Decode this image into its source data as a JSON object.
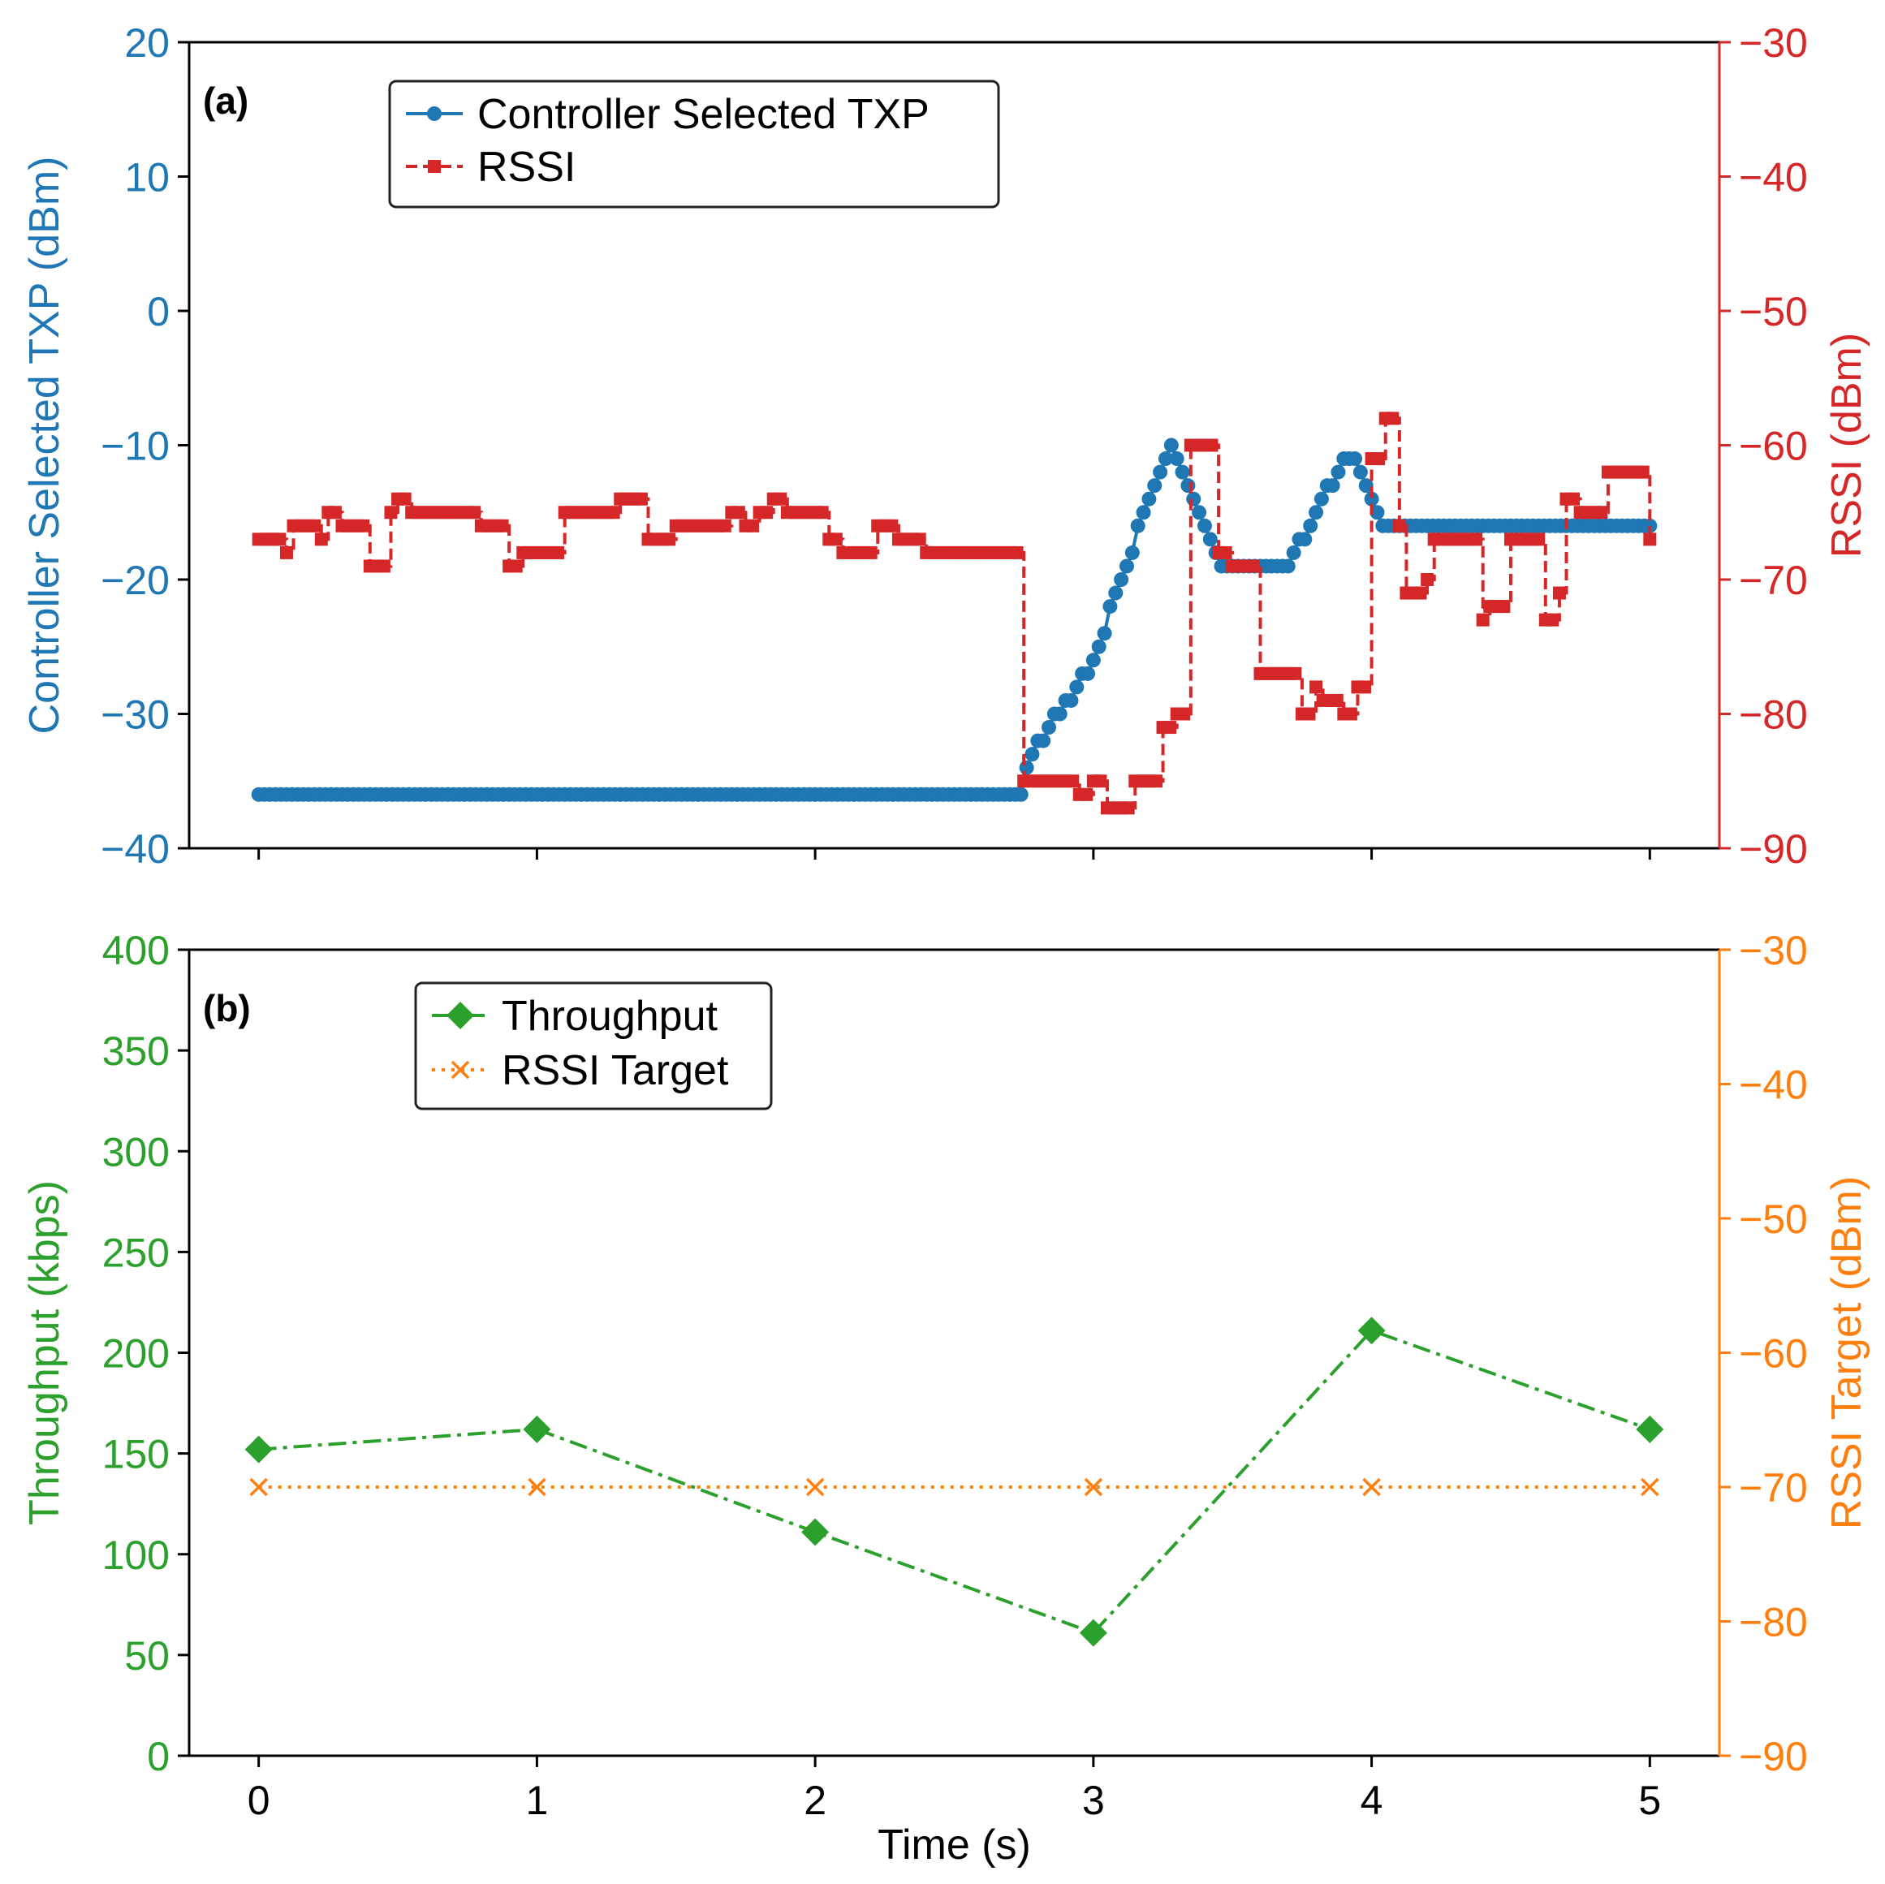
{
  "colors": {
    "txp": "#1f77b4",
    "rssi": "#d62728",
    "throughput": "#2ca02c",
    "rssi_target": "#ff7f0e",
    "axis": "#000000"
  },
  "chart_data": [
    {
      "id": "a",
      "type": "line",
      "panel_label": "(a)",
      "xlim": [
        -0.25,
        5.25
      ],
      "x_ticks": [
        0,
        1,
        2,
        3,
        4,
        5
      ],
      "left_axis": {
        "label": "Controller Selected TXP (dBm)",
        "ylim": [
          -40,
          20
        ],
        "ticks": [
          -40,
          -30,
          -20,
          -10,
          0,
          10,
          20
        ],
        "tick_labels": [
          "−40",
          "−30",
          "−20",
          "−10",
          "0",
          "10",
          "20"
        ]
      },
      "right_axis": {
        "label": "RSSI (dBm)",
        "ylim": [
          -90,
          -30
        ],
        "ticks": [
          -90,
          -80,
          -70,
          -60,
          -50,
          -40,
          -30
        ],
        "tick_labels": [
          "−90",
          "−80",
          "−70",
          "−60",
          "−50",
          "−40",
          "−30"
        ]
      },
      "legend": {
        "position": "top-left",
        "entries": [
          "Controller Selected TXP",
          "RSSI"
        ]
      },
      "series": [
        {
          "name": "Controller Selected TXP",
          "axis": "left",
          "style": "solid line, circle markers",
          "x": [
            0,
            2.74,
            2.78,
            3.0,
            3.1,
            3.2,
            3.28,
            3.38,
            3.45,
            3.7,
            3.8,
            3.9,
            3.95,
            4.05,
            5.0
          ],
          "y": [
            -36,
            -36,
            -33,
            -26,
            -20,
            -14,
            -10,
            -15,
            -19,
            -19,
            -15,
            -11,
            -11,
            -16,
            -16
          ]
        },
        {
          "name": "RSSI",
          "axis": "right",
          "style": "dashed line, square markers",
          "steps": [
            [
              0.0,
              -67
            ],
            [
              0.1,
              -68
            ],
            [
              0.12,
              -66
            ],
            [
              0.22,
              -67
            ],
            [
              0.25,
              -65
            ],
            [
              0.3,
              -66
            ],
            [
              0.38,
              -69
            ],
            [
              0.46,
              -65
            ],
            [
              0.5,
              -64
            ],
            [
              0.55,
              -65
            ],
            [
              0.8,
              -66
            ],
            [
              0.78,
              -69
            ],
            [
              0.85,
              -66
            ],
            [
              0.9,
              -69
            ],
            [
              0.95,
              -68
            ],
            [
              1.1,
              -65
            ],
            [
              1.3,
              -64
            ],
            [
              1.4,
              -67
            ],
            [
              1.5,
              -66
            ],
            [
              1.7,
              -65
            ],
            [
              1.75,
              -66
            ],
            [
              1.8,
              -65
            ],
            [
              1.85,
              -64
            ],
            [
              1.9,
              -65
            ],
            [
              2.05,
              -67
            ],
            [
              2.1,
              -68
            ],
            [
              2.22,
              -66
            ],
            [
              2.28,
              -65
            ],
            [
              2.3,
              -67
            ],
            [
              2.4,
              -68
            ],
            [
              2.73,
              -68
            ],
            [
              2.75,
              -85
            ],
            [
              2.9,
              -85
            ],
            [
              2.95,
              -86
            ],
            [
              3.0,
              -85
            ],
            [
              3.05,
              -87
            ],
            [
              3.15,
              -85
            ],
            [
              3.25,
              -81
            ],
            [
              3.28,
              -80
            ],
            [
              3.3,
              -80
            ],
            [
              3.33,
              -60
            ],
            [
              3.38,
              -59
            ],
            [
              3.4,
              -60
            ],
            [
              3.45,
              -68
            ],
            [
              3.5,
              -69
            ],
            [
              3.55,
              -69
            ],
            [
              3.6,
              -77
            ],
            [
              3.75,
              -80
            ],
            [
              3.78,
              -78
            ],
            [
              3.82,
              -79
            ],
            [
              3.9,
              -80
            ],
            [
              3.95,
              -78
            ],
            [
              3.98,
              -72
            ],
            [
              4.0,
              -61
            ],
            [
              4.05,
              -58
            ],
            [
              4.1,
              -66
            ],
            [
              4.12,
              -71
            ],
            [
              4.18,
              -70
            ],
            [
              4.22,
              -67
            ],
            [
              4.28,
              -67
            ],
            [
              4.33,
              -67
            ],
            [
              4.38,
              -73
            ],
            [
              4.42,
              -72
            ],
            [
              4.48,
              -67
            ],
            [
              4.58,
              -67
            ],
            [
              4.62,
              -73
            ],
            [
              4.66,
              -71
            ],
            [
              4.7,
              -64
            ],
            [
              4.75,
              -65
            ],
            [
              4.85,
              -62
            ],
            [
              5.0,
              -67
            ],
            [
              5.05,
              -67
            ]
          ]
        }
      ]
    },
    {
      "id": "b",
      "type": "line",
      "panel_label": "(b)",
      "xlabel": "Time (s)",
      "xlim": [
        -0.25,
        5.25
      ],
      "x_ticks": [
        0,
        1,
        2,
        3,
        4,
        5
      ],
      "x_tick_labels": [
        "0",
        "1",
        "2",
        "3",
        "4",
        "5"
      ],
      "left_axis": {
        "label": "Throughput (kbps)",
        "ylim": [
          0,
          400
        ],
        "ticks": [
          0,
          50,
          100,
          150,
          200,
          250,
          300,
          350,
          400
        ],
        "tick_labels": [
          "0",
          "50",
          "100",
          "150",
          "200",
          "250",
          "300",
          "350",
          "400"
        ]
      },
      "right_axis": {
        "label": "RSSI Target (dBm)",
        "ylim": [
          -90,
          -30
        ],
        "ticks": [
          -90,
          -80,
          -70,
          -60,
          -50,
          -40,
          -30
        ],
        "tick_labels": [
          "−90",
          "−80",
          "−70",
          "−60",
          "−50",
          "−40",
          "−30"
        ]
      },
      "legend": {
        "position": "top-left",
        "entries": [
          "Throughput",
          "RSSI Target"
        ]
      },
      "series": [
        {
          "name": "Throughput",
          "axis": "left",
          "style": "dash-dot line, diamond markers",
          "x": [
            0,
            1,
            2,
            3,
            4,
            5
          ],
          "y": [
            152,
            162,
            111,
            61,
            211,
            162
          ]
        },
        {
          "name": "RSSI Target",
          "axis": "right",
          "style": "dotted line, x markers",
          "x": [
            0,
            1,
            2,
            3,
            4,
            5
          ],
          "y": [
            -70,
            -70,
            -70,
            -70,
            -70,
            -70
          ]
        }
      ]
    }
  ]
}
